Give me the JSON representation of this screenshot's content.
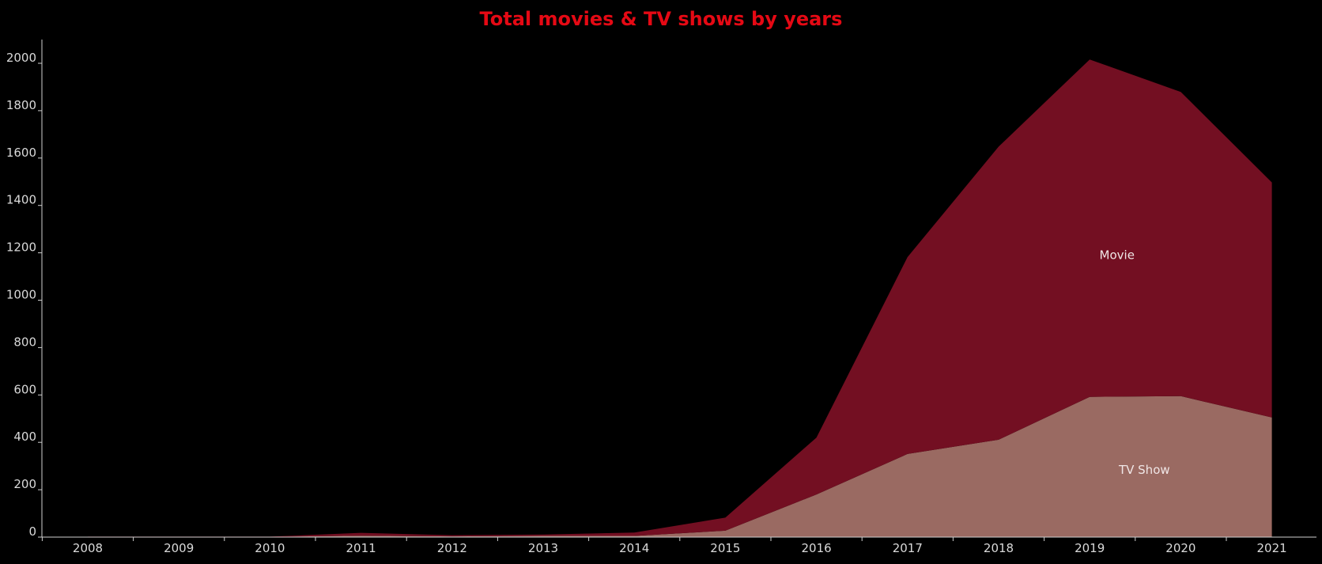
{
  "chart_data": {
    "type": "area",
    "stacked": true,
    "title": "Total movies & TV shows by years",
    "xlabel": "",
    "ylabel": "",
    "x": [
      "2008",
      "2009",
      "2010",
      "2011",
      "2012",
      "2013",
      "2014",
      "2015",
      "2016",
      "2017",
      "2018",
      "2019",
      "2020",
      "2021"
    ],
    "ylim": [
      0,
      2000
    ],
    "yticks": [
      0,
      200,
      400,
      600,
      800,
      1000,
      1200,
      1400,
      1600,
      1800,
      2000
    ],
    "grid": false,
    "series": [
      {
        "name": "TV Show",
        "color": "#9a6a62",
        "values": [
          1,
          1,
          1,
          6,
          3,
          5,
          5,
          27,
          180,
          351,
          411,
          592,
          595,
          505
        ]
      },
      {
        "name": "Movie",
        "color": "#730f22",
        "values": [
          1,
          1,
          1,
          12,
          5,
          6,
          14,
          55,
          240,
          831,
          1237,
          1424,
          1284,
          992
        ]
      }
    ]
  }
}
